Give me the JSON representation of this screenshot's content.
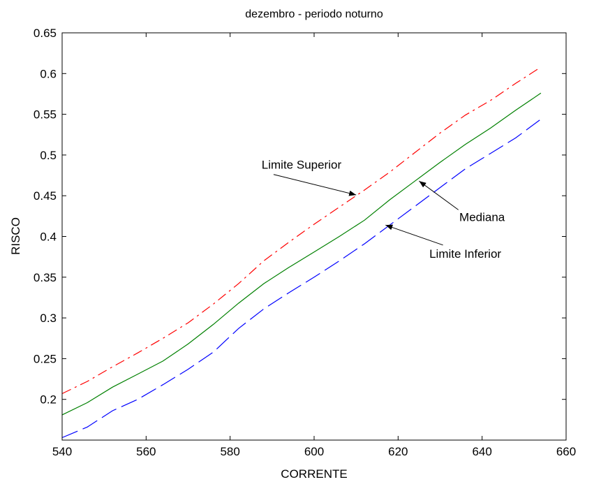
{
  "chart_data": {
    "type": "line",
    "title": "dezembro - periodo noturno",
    "xlabel": "CORRENTE",
    "ylabel": "RISCO",
    "xlim": [
      540,
      660
    ],
    "ylim": [
      0.15,
      0.65
    ],
    "xticks": [
      "540",
      "560",
      "580",
      "600",
      "620",
      "640",
      "660"
    ],
    "yticks": [
      "0.2",
      "0.25",
      "0.3",
      "0.35",
      "0.4",
      "0.45",
      "0.5",
      "0.55",
      "0.6",
      "0.65"
    ],
    "grid": false,
    "x": [
      540,
      546,
      552,
      558,
      564,
      570,
      576,
      582,
      588,
      594,
      600,
      606,
      612,
      618,
      624,
      630,
      636,
      642,
      648,
      654
    ],
    "series": [
      {
        "color": "#ff0000",
        "style": "dashdot",
        "values": [
          0.207,
          0.222,
          0.24,
          0.257,
          0.275,
          0.294,
          0.317,
          0.342,
          0.37,
          0.393,
          0.415,
          0.436,
          0.457,
          0.479,
          0.503,
          0.527,
          0.549,
          0.567,
          0.588,
          0.608
        ]
      },
      {
        "color": "#008000",
        "style": "solid",
        "values": [
          0.181,
          0.196,
          0.215,
          0.231,
          0.247,
          0.268,
          0.292,
          0.318,
          0.342,
          0.362,
          0.381,
          0.4,
          0.42,
          0.445,
          0.468,
          0.491,
          0.513,
          0.533,
          0.555,
          0.576
        ]
      },
      {
        "color": "#0000ff",
        "style": "longdash",
        "values": [
          0.153,
          0.166,
          0.186,
          0.2,
          0.218,
          0.237,
          0.258,
          0.287,
          0.311,
          0.331,
          0.35,
          0.37,
          0.391,
          0.414,
          0.437,
          0.46,
          0.483,
          0.502,
          0.521,
          0.544
        ]
      }
    ],
    "annotations": [
      {
        "text": "Limite Superior",
        "x": 597,
        "y": 0.483,
        "arrow_to": [
          610,
          0.451
        ]
      },
      {
        "text": "Mediana",
        "x": 640,
        "y": 0.419,
        "arrow_to": [
          625,
          0.468
        ]
      },
      {
        "text": "Limite Inferior",
        "x": 636,
        "y": 0.374,
        "arrow_to": [
          617,
          0.414
        ]
      }
    ]
  }
}
